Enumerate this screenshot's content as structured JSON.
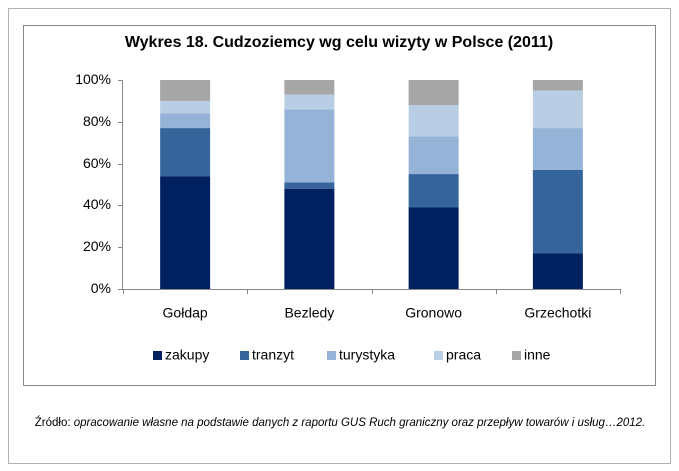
{
  "chart_data": {
    "type": "stacked_bar",
    "title": "Wykres 18. Cudzoziemcy wg celu wizyty w Polsce (2011)",
    "categories": [
      "Gołdap",
      "Bezledy",
      "Gronowo",
      "Grzechotki"
    ],
    "series": [
      {
        "name": "zakupy",
        "color": "#002060",
        "values": [
          54,
          48,
          39,
          17
        ]
      },
      {
        "name": "tranzyt",
        "color": "#35659b",
        "values": [
          23,
          3,
          16,
          40
        ]
      },
      {
        "name": "turystyka",
        "color": "#95b3d7",
        "values": [
          7,
          35,
          18,
          20
        ]
      },
      {
        "name": "praca",
        "color": "#b9cde5",
        "values": [
          6,
          7,
          15,
          18
        ]
      },
      {
        "name": "inne",
        "color": "#a6a6a6",
        "values": [
          10,
          7,
          12,
          5
        ]
      }
    ],
    "ylim": [
      0,
      100
    ],
    "yticks": [
      {
        "value": 0,
        "label": "0%"
      },
      {
        "value": 20,
        "label": "20%"
      },
      {
        "value": 40,
        "label": "40%"
      },
      {
        "value": 60,
        "label": "60%"
      },
      {
        "value": 80,
        "label": "80%"
      },
      {
        "value": 100,
        "label": "100%"
      }
    ],
    "legend": "bottom"
  },
  "source": {
    "prefix": "Źródło:",
    "text": "opracowanie własne na podstawie danych z raportu GUS Ruch graniczny oraz przepływ towarów i usług…2012."
  }
}
